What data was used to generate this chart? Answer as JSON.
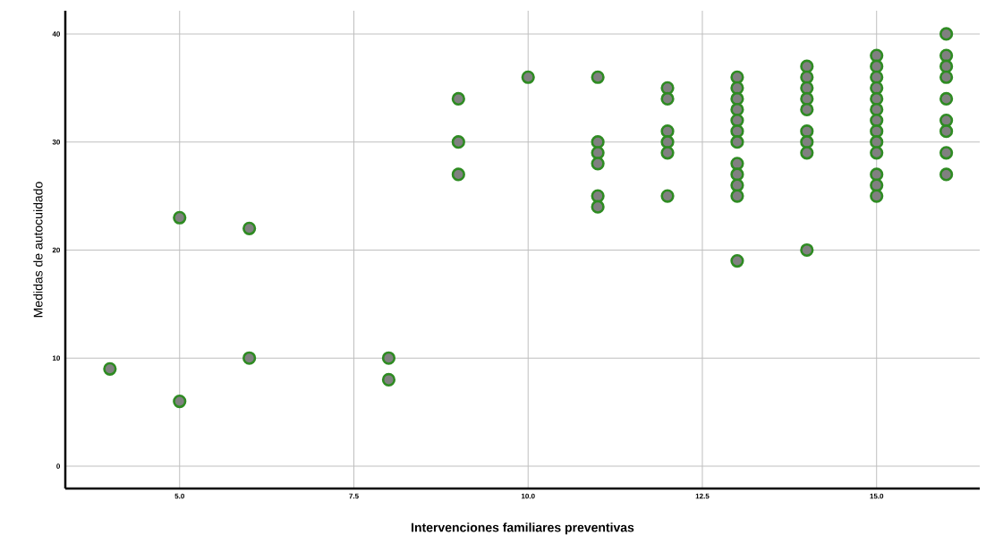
{
  "chart_data": {
    "type": "scatter",
    "xlabel": "Intervenciones familiares preventivas",
    "ylabel": "Medidas de autocuidado",
    "xlim": [
      3.36,
      16.48
    ],
    "ylim": [
      -2.07,
      42.15
    ],
    "xticks": [
      {
        "value": 5,
        "label": "5.0"
      },
      {
        "value": 7.5,
        "label": "7.5"
      },
      {
        "value": 10,
        "label": "10.0"
      },
      {
        "value": 12.5,
        "label": "12.5"
      },
      {
        "value": 15,
        "label": "15.0"
      }
    ],
    "yticks": [
      0,
      10,
      20,
      30,
      40
    ],
    "grid": true,
    "series": [
      {
        "color": "#2e8b22",
        "x": [
          4,
          5,
          5,
          6,
          6,
          8,
          8,
          9,
          9,
          9,
          10,
          11,
          11,
          11,
          11,
          11,
          11,
          12,
          12,
          12,
          12,
          12,
          12,
          13,
          13,
          13,
          13,
          13,
          13,
          13,
          13,
          13,
          13,
          13,
          13,
          14,
          14,
          14,
          14,
          14,
          14,
          14,
          14,
          14,
          15,
          15,
          15,
          15,
          15,
          15,
          15,
          15,
          15,
          15,
          15,
          15,
          15,
          16,
          16,
          16,
          16,
          16,
          16,
          16,
          16,
          16
        ],
        "values": [
          9,
          23,
          6,
          22,
          10,
          10,
          8,
          34,
          30,
          27,
          36,
          36,
          30,
          29,
          28,
          25,
          24,
          35,
          34,
          31,
          30,
          29,
          25,
          36,
          35,
          34,
          33,
          32,
          31,
          30,
          28,
          27,
          26,
          25,
          19,
          37,
          36,
          35,
          34,
          33,
          31,
          30,
          29,
          20,
          38,
          37,
          36,
          35,
          34,
          33,
          32,
          31,
          30,
          29,
          27,
          26,
          25,
          40,
          38,
          37,
          36,
          34,
          32,
          31,
          29,
          27
        ]
      }
    ]
  }
}
